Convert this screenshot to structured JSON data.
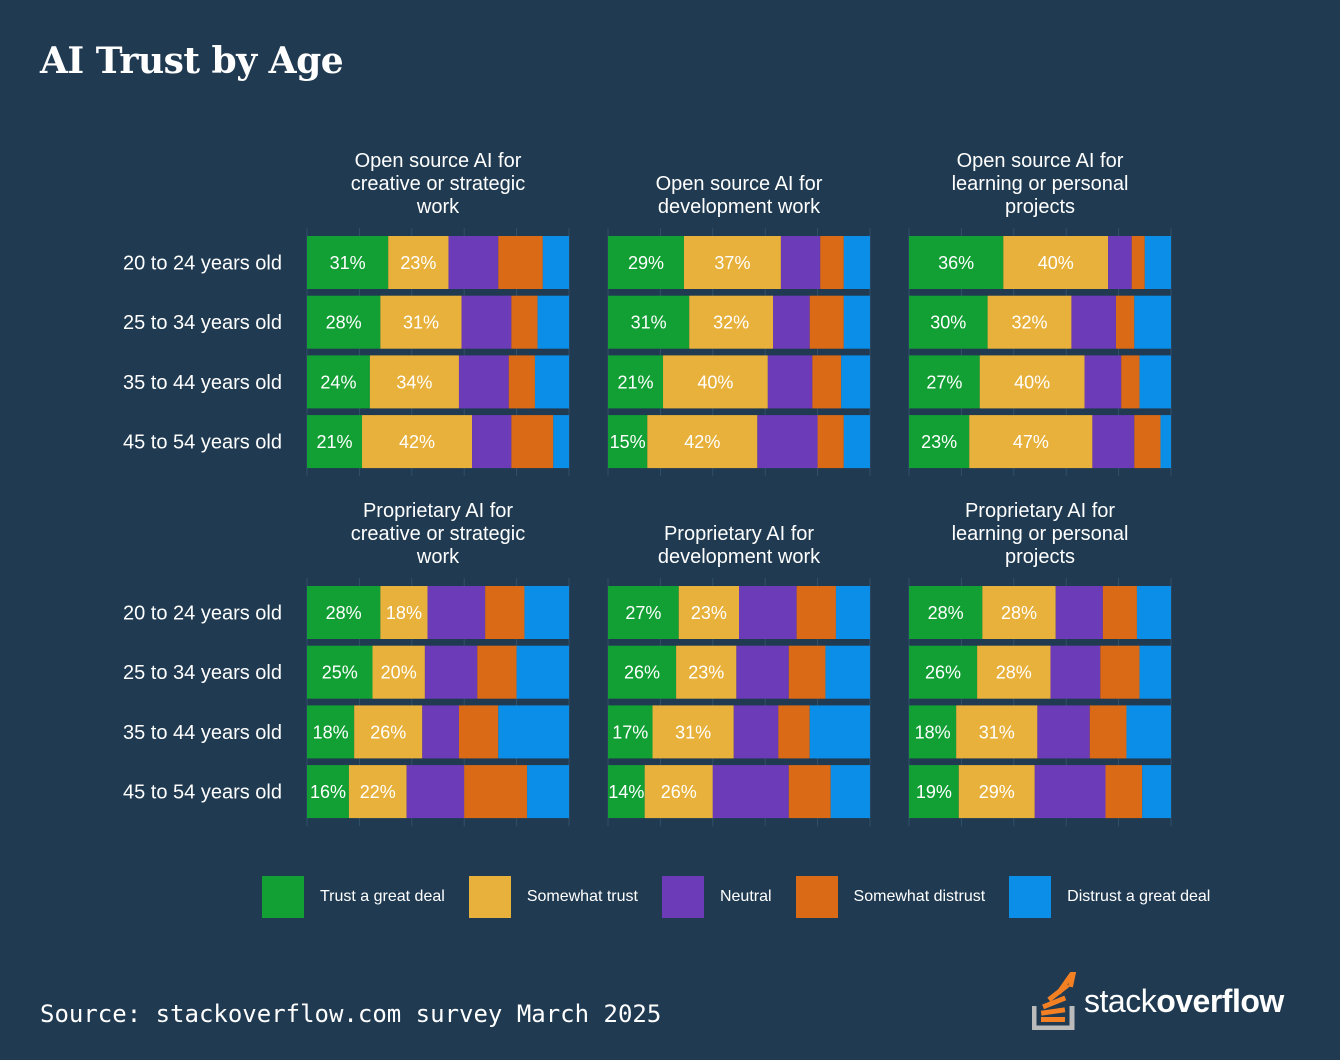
{
  "title": "AI Trust by Age",
  "source": "Source: stackoverflow.com survey March 2025",
  "logo": {
    "thin": "stack",
    "bold": "overflow"
  },
  "legend": [
    {
      "label": "Trust a great deal",
      "color": "#12a034"
    },
    {
      "label": "Somewhat trust",
      "color": "#e8b13b"
    },
    {
      "label": "Neutral",
      "color": "#6c3bb8"
    },
    {
      "label": "Somewhat distrust",
      "color": "#db6a17"
    },
    {
      "label": "Distrust a great deal",
      "color": "#0a8ee8"
    }
  ],
  "chart_data": {
    "type": "bar",
    "orientation": "horizontal-stacked-100",
    "title": "AI Trust by Age",
    "categories": [
      "20 to 24 years old",
      "25 to 34 years old",
      "35 to 44 years old",
      "45 to 54 years old"
    ],
    "series_names": [
      "Trust a great deal",
      "Somewhat trust",
      "Neutral",
      "Somewhat distrust",
      "Distrust a great deal"
    ],
    "label_series": [
      0,
      1
    ],
    "panels": [
      {
        "title": [
          "Open source AI for",
          "creative or strategic",
          "work"
        ],
        "rows": [
          [
            31,
            23,
            19,
            17,
            10
          ],
          [
            28,
            31,
            19,
            10,
            12
          ],
          [
            24,
            34,
            19,
            10,
            13
          ],
          [
            21,
            42,
            15,
            16,
            6
          ]
        ]
      },
      {
        "title": [
          "Open source AI for",
          "development work"
        ],
        "rows": [
          [
            29,
            37,
            15,
            9,
            10
          ],
          [
            31,
            32,
            14,
            13,
            10
          ],
          [
            21,
            40,
            17,
            11,
            11
          ],
          [
            15,
            42,
            23,
            10,
            10
          ]
        ]
      },
      {
        "title": [
          "Open source AI for",
          "learning or personal",
          "projects"
        ],
        "rows": [
          [
            36,
            40,
            9,
            5,
            10
          ],
          [
            30,
            32,
            17,
            7,
            14
          ],
          [
            27,
            40,
            14,
            7,
            12
          ],
          [
            23,
            47,
            16,
            10,
            4
          ]
        ]
      },
      {
        "title": [
          "Proprietary AI for",
          "creative or strategic",
          "work"
        ],
        "rows": [
          [
            28,
            18,
            22,
            15,
            17
          ],
          [
            25,
            20,
            20,
            15,
            20
          ],
          [
            18,
            26,
            14,
            15,
            27
          ],
          [
            16,
            22,
            22,
            24,
            16
          ]
        ]
      },
      {
        "title": [
          "Proprietary AI for",
          "development work"
        ],
        "rows": [
          [
            27,
            23,
            22,
            15,
            13
          ],
          [
            26,
            23,
            20,
            14,
            17
          ],
          [
            17,
            31,
            17,
            12,
            23
          ],
          [
            14,
            26,
            29,
            16,
            15
          ]
        ]
      },
      {
        "title": [
          "Proprietary AI for",
          "learning or personal",
          "projects"
        ],
        "rows": [
          [
            28,
            28,
            18,
            13,
            13
          ],
          [
            26,
            28,
            19,
            15,
            12
          ],
          [
            18,
            31,
            20,
            14,
            17
          ],
          [
            19,
            29,
            27,
            14,
            11
          ]
        ]
      }
    ]
  }
}
